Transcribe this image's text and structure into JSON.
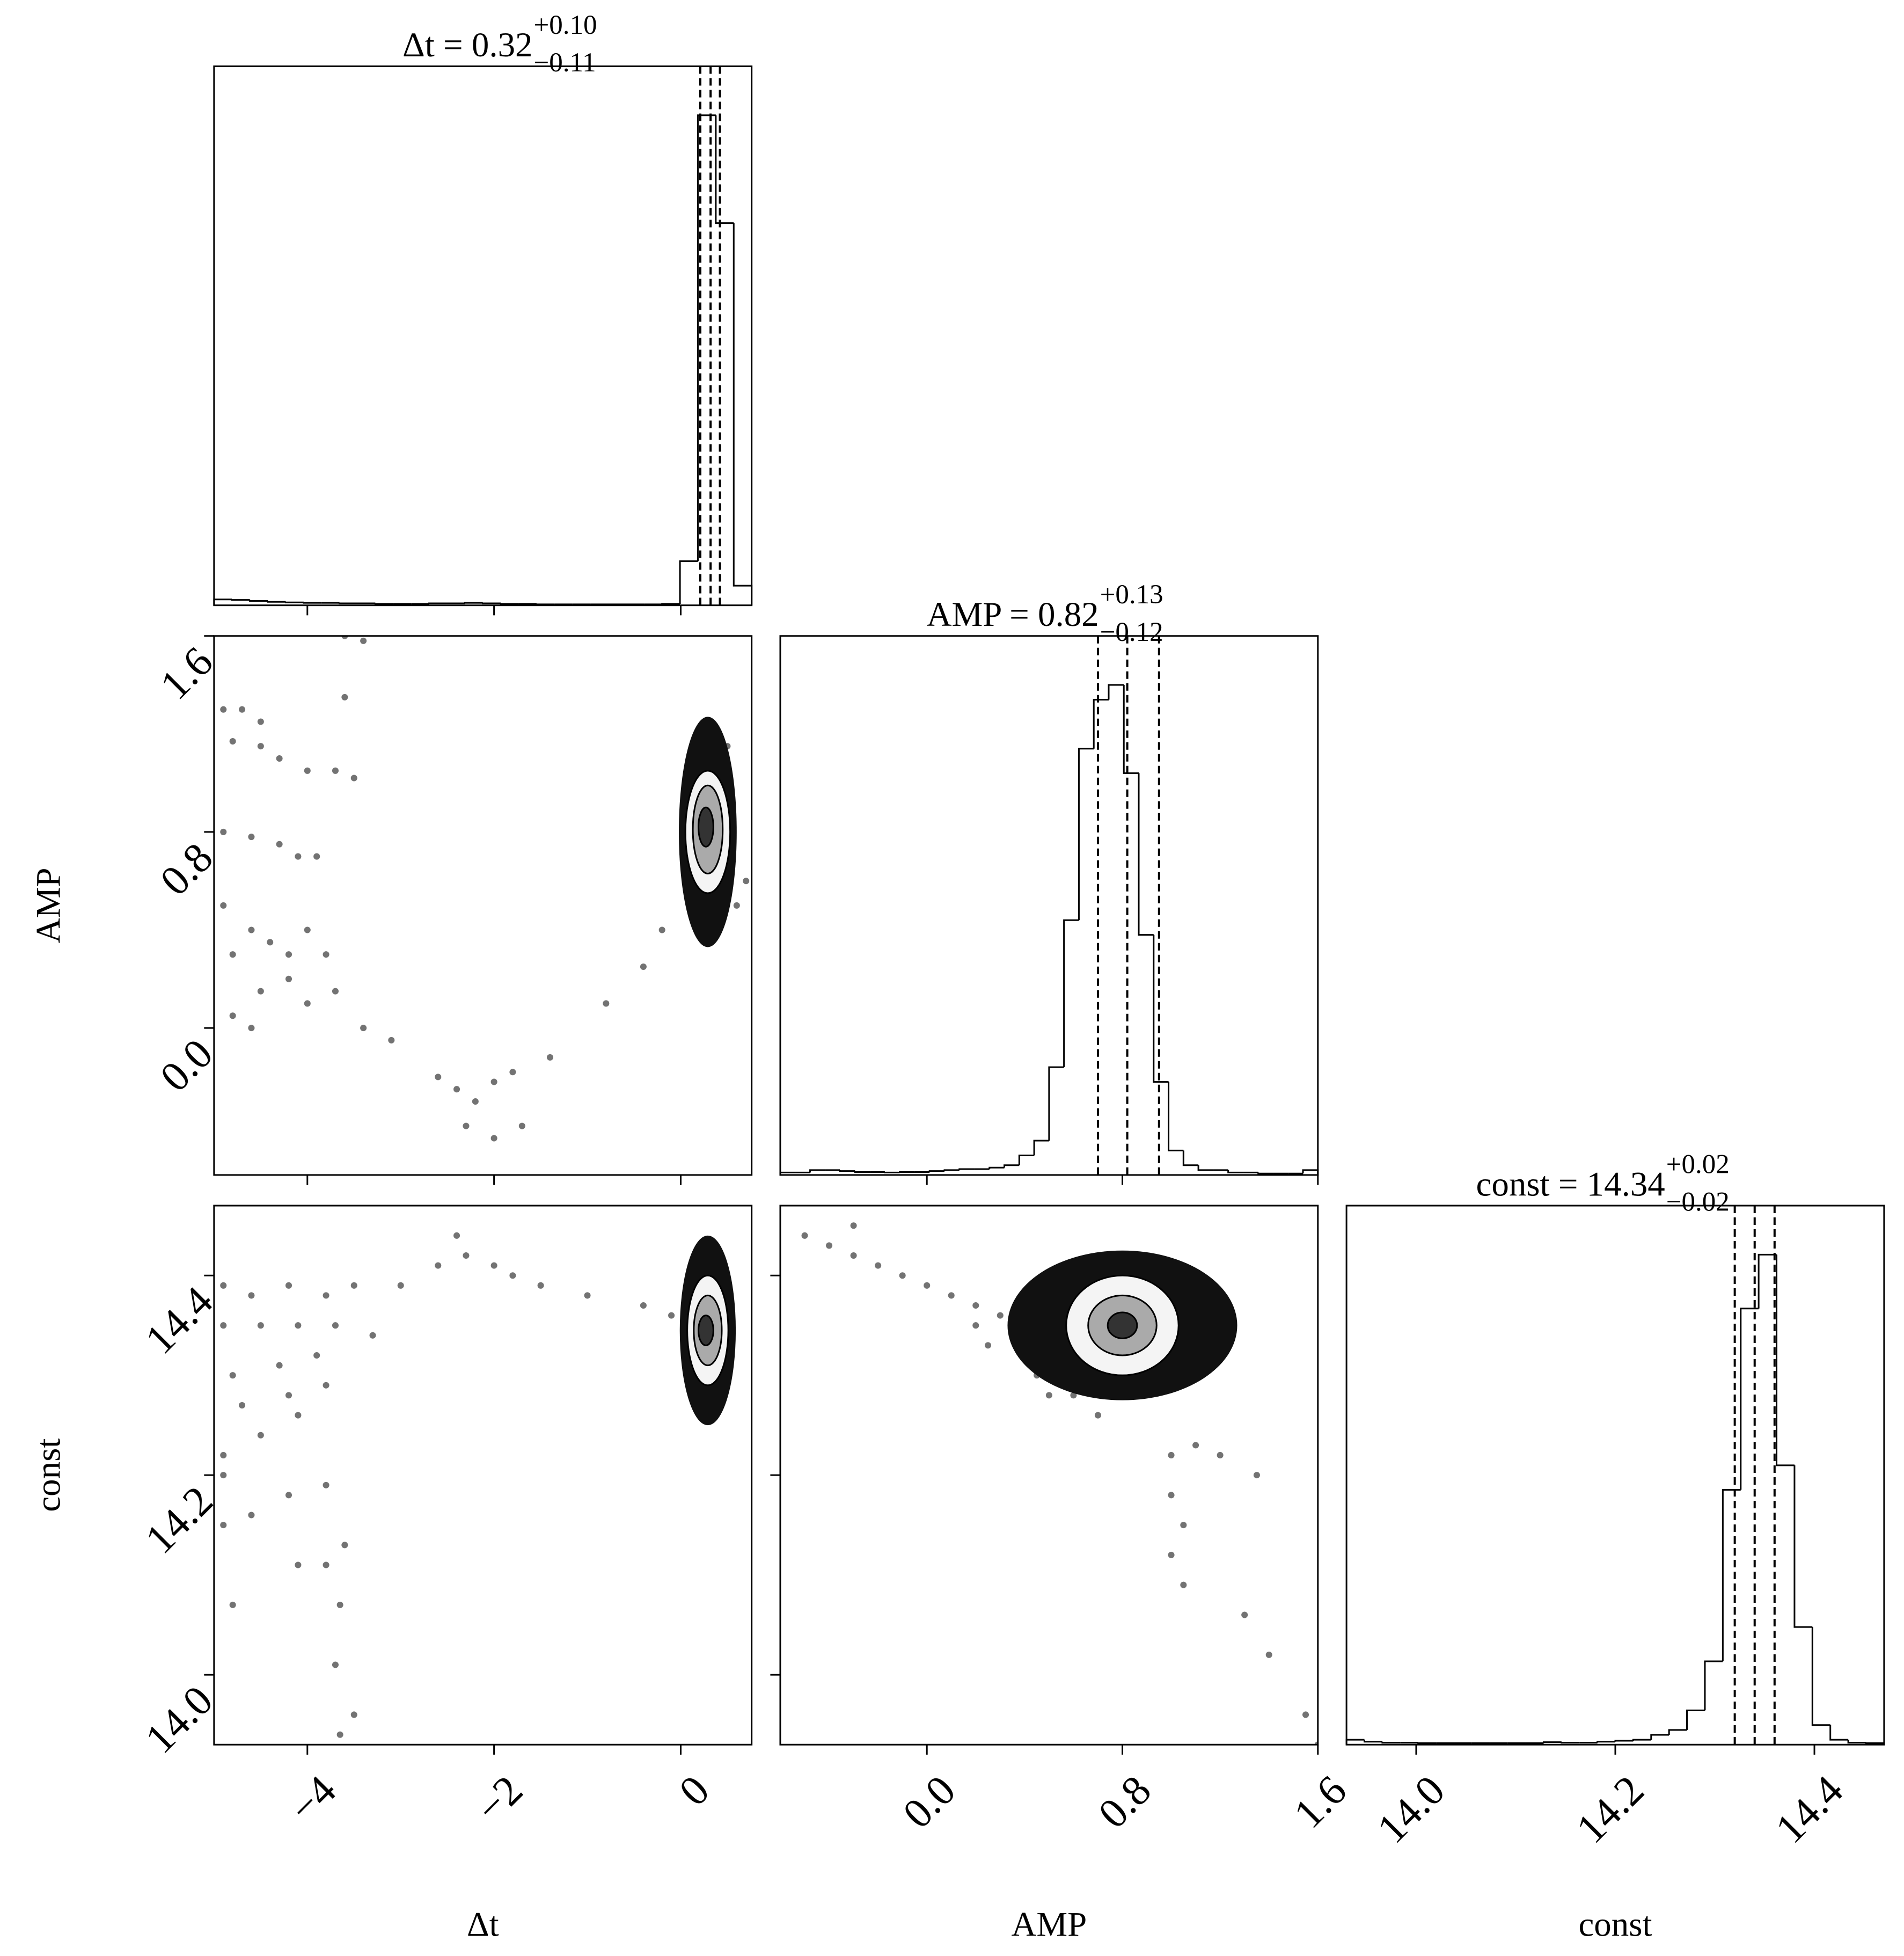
{
  "chart_data": {
    "type": "corner",
    "hist_ylim": [
      0,
      1.1
    ],
    "variables": [
      {
        "label": "Δt",
        "lim": [
          -5,
          0.76
        ],
        "ticks": [
          {
            "value": -4,
            "label": "−4"
          },
          {
            "value": -2,
            "label": "−2"
          },
          0
        ],
        "title": "Δt = 0.32",
        "title_upper": "+0.10",
        "title_lower": "−0.11",
        "quantiles": [
          0.21,
          0.32,
          0.42
        ],
        "bins": [
          -5,
          -4.808,
          -4.616,
          -4.424,
          -4.232,
          -4.04,
          -3.848,
          -3.656,
          -3.464,
          -3.272,
          -3.08,
          -2.888,
          -2.696,
          -2.504,
          -2.312,
          -2.12,
          -1.928,
          -1.736,
          -1.544,
          -1.352,
          -1.16,
          -0.968,
          -0.776,
          -0.584,
          -0.392,
          -0.2,
          -0.008,
          0.184,
          0.376,
          0.568,
          0.76
        ],
        "counts": [
          0.012,
          0.011,
          0.009,
          0.007,
          0.006,
          0.005,
          0.005,
          0.004,
          0.004,
          0.003,
          0.003,
          0.003,
          0.004,
          0.004,
          0.005,
          0.004,
          0.003,
          0.003,
          0.002,
          0.002,
          0.002,
          0.002,
          0.002,
          0.002,
          0.002,
          0.003,
          0.09,
          1.0,
          0.78,
          0.04
        ]
      },
      {
        "label": "AMP",
        "lim": [
          -0.6,
          1.6
        ],
        "ticks": [
          {
            "value": 0,
            "label": "0.0"
          },
          0.8,
          1.6
        ],
        "title": "AMP = 0.82",
        "title_upper": "+0.13",
        "title_lower": "−0.12",
        "quantiles": [
          0.7,
          0.82,
          0.95
        ],
        "bins": [
          -0.6,
          -0.539,
          -0.478,
          -0.417,
          -0.356,
          -0.294,
          -0.233,
          -0.172,
          -0.111,
          -0.05,
          0.011,
          0.072,
          0.133,
          0.194,
          0.256,
          0.317,
          0.378,
          0.439,
          0.5,
          0.561,
          0.622,
          0.683,
          0.744,
          0.806,
          0.867,
          0.928,
          0.989,
          1.05,
          1.111,
          1.172,
          1.233,
          1.294,
          1.356,
          1.417,
          1.478,
          1.539,
          1.6
        ],
        "counts": [
          0.005,
          0.005,
          0.01,
          0.01,
          0.008,
          0.006,
          0.006,
          0.005,
          0.006,
          0.006,
          0.008,
          0.01,
          0.012,
          0.012,
          0.015,
          0.02,
          0.04,
          0.07,
          0.22,
          0.52,
          0.87,
          0.97,
          1.0,
          0.82,
          0.49,
          0.19,
          0.05,
          0.02,
          0.01,
          0.01,
          0.005,
          0.005,
          0.003,
          0.003,
          0.003,
          0.01
        ]
      },
      {
        "label": "const",
        "lim": [
          13.93,
          14.47
        ],
        "ticks": [
          {
            "value": 14,
            "label": "14.0"
          },
          14.2,
          14.4
        ],
        "title": "const = 14.34",
        "title_upper": "+0.02",
        "title_lower": "−0.02",
        "quantiles": [
          14.32,
          14.34,
          14.36
        ],
        "bins": [
          13.93,
          13.948,
          13.966,
          13.984,
          14.002,
          14.02,
          14.038,
          14.056,
          14.074,
          14.092,
          14.11,
          14.128,
          14.146,
          14.164,
          14.182,
          14.2,
          14.218,
          14.236,
          14.254,
          14.272,
          14.29,
          14.308,
          14.326,
          14.344,
          14.362,
          14.38,
          14.398,
          14.416,
          14.434,
          14.452,
          14.47
        ],
        "counts": [
          0.01,
          0.006,
          0.004,
          0.004,
          0.003,
          0.003,
          0.003,
          0.003,
          0.003,
          0.003,
          0.003,
          0.005,
          0.004,
          0.004,
          0.006,
          0.008,
          0.01,
          0.02,
          0.03,
          0.07,
          0.17,
          0.52,
          0.89,
          1.0,
          0.57,
          0.24,
          0.04,
          0.01,
          0.004,
          0.003
        ]
      }
    ],
    "pairs": [
      {
        "points": {
          "x": [
            -4.9,
            -4.7,
            -4.5,
            -4.8,
            -4.5,
            -4.3,
            -4.0,
            -3.7,
            -3.5,
            -4.9,
            -4.6,
            -4.3,
            -4.1,
            -3.9,
            -4.9,
            -4.8,
            -4.6,
            -4.4,
            -4.2,
            -4.0,
            -3.8,
            -4.5,
            -4.2,
            -4.0,
            -3.7,
            -4.8,
            -4.6,
            -3.6,
            -3.4,
            -3.6,
            -3.4,
            -3.1,
            -2.6,
            -2.4,
            -2.2,
            -2.0,
            -1.8,
            -2.3,
            -2.0,
            -1.7,
            -1.4,
            -0.8,
            -0.4,
            -0.2,
            0.6,
            0.7,
            0.05,
            0.5
          ],
          "y": [
            1.3,
            1.3,
            1.25,
            1.17,
            1.15,
            1.1,
            1.05,
            1.05,
            1.02,
            0.8,
            0.78,
            0.75,
            0.7,
            0.7,
            0.5,
            0.3,
            0.4,
            0.35,
            0.3,
            0.4,
            0.3,
            0.15,
            0.2,
            0.1,
            0.15,
            0.05,
            0.0,
            1.6,
            1.58,
            1.35,
            0.0,
            -0.05,
            -0.2,
            -0.25,
            -0.3,
            -0.22,
            -0.18,
            -0.4,
            -0.45,
            -0.4,
            -0.12,
            0.1,
            0.25,
            0.4,
            0.5,
            0.6,
            0.9,
            1.15
          ]
        },
        "contours": [
          {
            "cx": 0.29,
            "cy": 0.8,
            "rx": 0.31,
            "ry": 0.47,
            "fill": "#111111"
          },
          {
            "cx": 0.29,
            "cy": 0.8,
            "rx": 0.24,
            "ry": 0.25,
            "fill": "#f4f4f4"
          },
          {
            "cx": 0.29,
            "cy": 0.81,
            "rx": 0.16,
            "ry": 0.18,
            "fill": "#aaaaaa"
          },
          {
            "cx": 0.27,
            "cy": 0.82,
            "rx": 0.08,
            "ry": 0.08,
            "fill": "#333333"
          }
        ]
      },
      {
        "points": {
          "x": [
            -4.9,
            -4.6,
            -4.2,
            -3.8,
            -3.5,
            -4.9,
            -4.5,
            -4.1,
            -3.7,
            -3.3,
            -4.8,
            -4.3,
            -3.9,
            -4.7,
            -4.2,
            -3.8,
            -4.9,
            -4.5,
            -4.1,
            -4.9,
            -4.6,
            -4.2,
            -3.8,
            -4.1,
            -3.8,
            -3.6,
            -3.65,
            -3.7,
            -3.5,
            -3.65,
            -4.8,
            -4.9,
            -2.6,
            -2.3,
            -2.0,
            -1.8,
            -1.5,
            -2.4,
            -3.0,
            -1.0,
            -0.4,
            -0.1
          ],
          "y": [
            14.39,
            14.38,
            14.39,
            14.38,
            14.39,
            14.35,
            14.35,
            14.35,
            14.35,
            14.34,
            14.3,
            14.31,
            14.32,
            14.27,
            14.28,
            14.29,
            14.22,
            14.24,
            14.26,
            14.2,
            14.16,
            14.18,
            14.19,
            14.11,
            14.11,
            14.13,
            14.07,
            14.01,
            13.96,
            13.94,
            14.07,
            14.15,
            14.41,
            14.42,
            14.41,
            14.4,
            14.39,
            14.44,
            14.39,
            14.38,
            14.37,
            14.36
          ]
        },
        "contours": [
          {
            "cx": 0.29,
            "cy": 14.345,
            "rx": 0.3,
            "ry": 0.095,
            "fill": "#111111"
          },
          {
            "cx": 0.29,
            "cy": 14.345,
            "rx": 0.22,
            "ry": 0.055,
            "fill": "#f4f4f4"
          },
          {
            "cx": 0.29,
            "cy": 14.345,
            "rx": 0.15,
            "ry": 0.035,
            "fill": "#aaaaaa"
          },
          {
            "cx": 0.27,
            "cy": 14.345,
            "rx": 0.08,
            "ry": 0.015,
            "fill": "#333333"
          }
        ]
      },
      {
        "points": {
          "x": [
            -0.5,
            -0.4,
            -0.3,
            -0.2,
            -0.1,
            0.0,
            0.1,
            0.2,
            0.3,
            0.2,
            0.35,
            0.25,
            0.4,
            0.45,
            -0.3,
            0.5,
            0.6,
            0.7,
            1.1,
            1.2,
            1.35,
            1.0,
            1.0,
            1.05,
            1.0,
            1.05,
            1.3,
            1.4,
            1.55,
            1.6
          ],
          "y": [
            14.44,
            14.43,
            14.42,
            14.41,
            14.4,
            14.39,
            14.38,
            14.37,
            14.36,
            14.35,
            14.35,
            14.33,
            14.32,
            14.3,
            14.45,
            14.28,
            14.28,
            14.26,
            14.23,
            14.22,
            14.2,
            14.22,
            14.18,
            14.15,
            14.12,
            14.09,
            14.06,
            14.02,
            13.96,
            13.93
          ]
        },
        "contours": [
          {
            "cx": 0.8,
            "cy": 14.35,
            "rx": 0.47,
            "ry": 0.075,
            "fill": "#111111"
          },
          {
            "cx": 0.8,
            "cy": 14.35,
            "rx": 0.23,
            "ry": 0.05,
            "fill": "#f4f4f4"
          },
          {
            "cx": 0.8,
            "cy": 14.35,
            "rx": 0.14,
            "ry": 0.03,
            "fill": "#aaaaaa"
          },
          {
            "cx": 0.8,
            "cy": 14.35,
            "rx": 0.06,
            "ry": 0.013,
            "fill": "#333333"
          }
        ]
      }
    ]
  }
}
